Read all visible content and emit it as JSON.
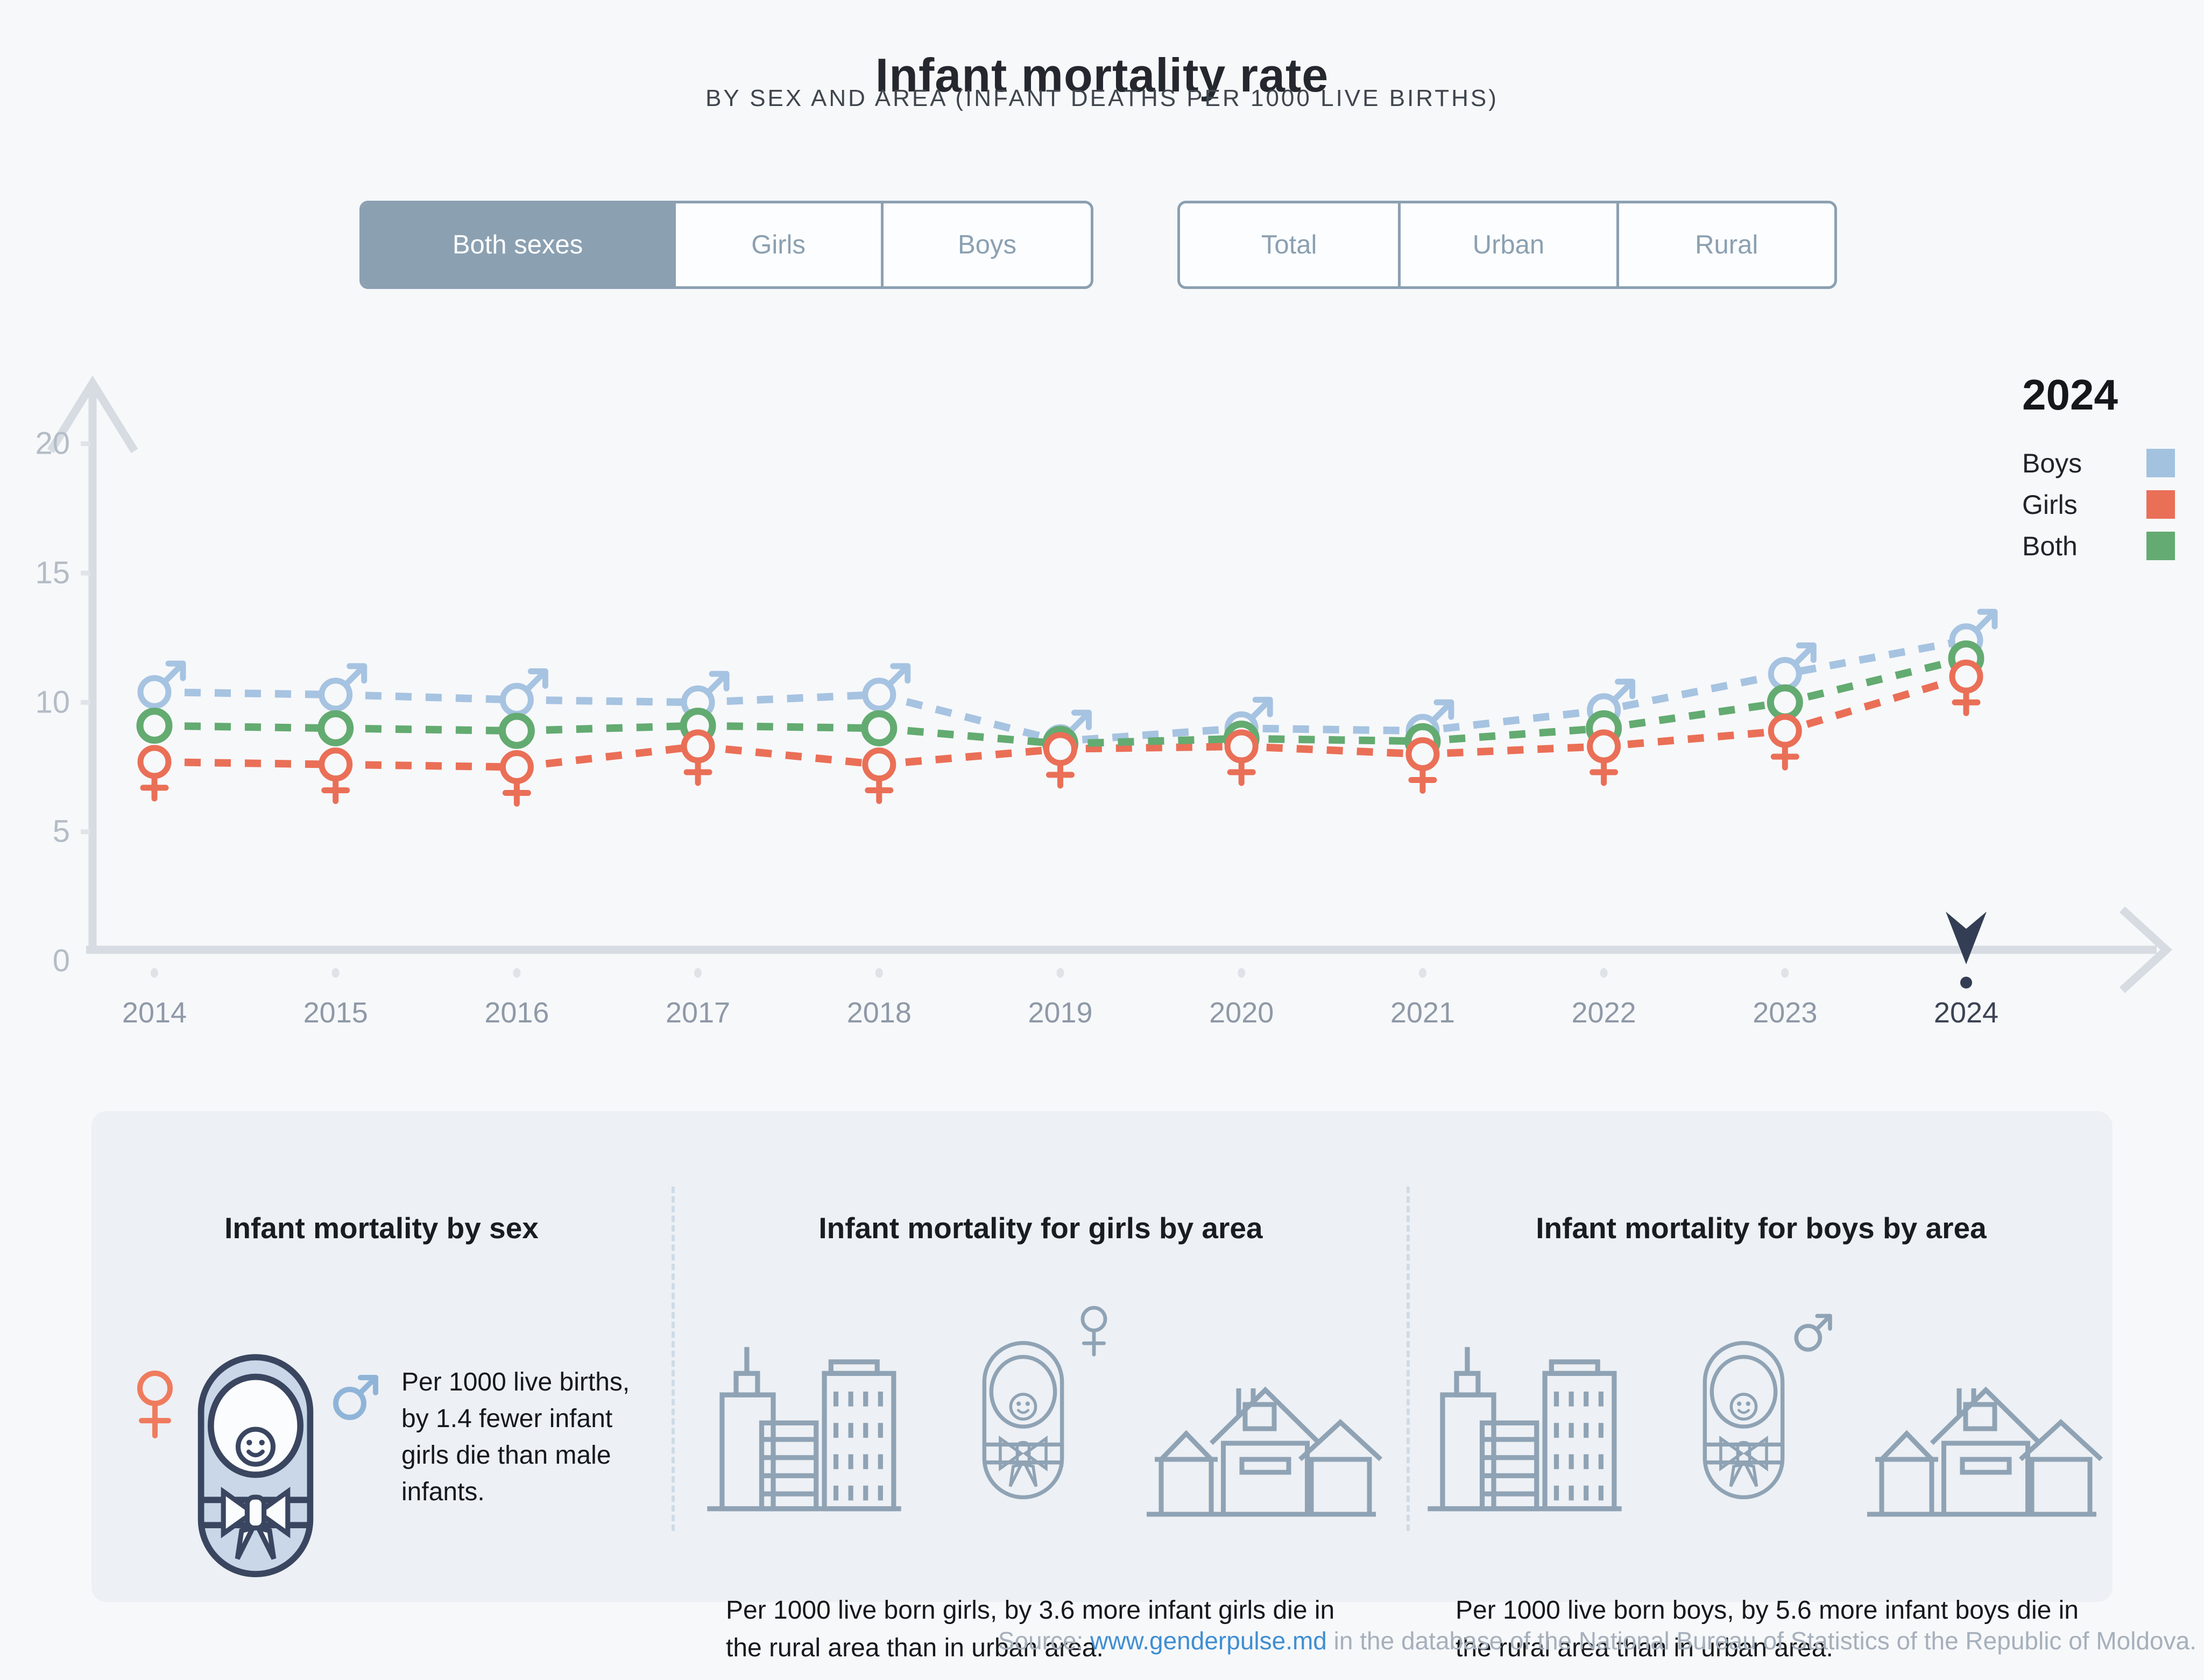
{
  "header": {
    "title": "Infant mortality rate",
    "subtitle": "BY SEX AND AREA (INFANT DEATHS PER 1000 LIVE BIRTHS)"
  },
  "filters": {
    "sex": {
      "options": [
        "Both sexes",
        "Girls",
        "Boys"
      ],
      "selected": "Both sexes"
    },
    "area": {
      "options": [
        "Total",
        "Urban",
        "Rural"
      ],
      "selected": ""
    }
  },
  "legend": {
    "year": "2024",
    "entries": [
      {
        "label": "Boys",
        "color": "#a3c2e0"
      },
      {
        "label": "Girls",
        "color": "#ea6f57"
      },
      {
        "label": "Both",
        "color": "#63ab71"
      }
    ]
  },
  "chart_data": {
    "type": "line",
    "x": [
      2014,
      2015,
      2016,
      2017,
      2018,
      2019,
      2020,
      2021,
      2022,
      2023,
      2024
    ],
    "series": [
      {
        "id": "boys",
        "name": "Boys",
        "marker": "male",
        "color": "#a6c3e1",
        "values": [
          10.4,
          10.3,
          10.1,
          10.0,
          10.3,
          8.5,
          9.0,
          8.9,
          9.7,
          11.1,
          12.4
        ]
      },
      {
        "id": "girls",
        "name": "Girls",
        "marker": "female",
        "color": "#ea6f57",
        "values": [
          7.7,
          7.6,
          7.5,
          8.3,
          7.6,
          8.2,
          8.3,
          8.0,
          8.3,
          8.9,
          11.0
        ]
      },
      {
        "id": "both",
        "name": "Both",
        "marker": "circle",
        "color": "#63ab71",
        "values": [
          9.1,
          9.0,
          8.9,
          9.1,
          9.0,
          8.4,
          8.6,
          8.5,
          9.0,
          10.0,
          11.7
        ]
      }
    ],
    "title": "Infant mortality rate",
    "xlabel": "",
    "ylabel": "",
    "ylim": [
      0,
      22
    ],
    "yticks": [
      0,
      5,
      10,
      15,
      20
    ],
    "grid": false,
    "legend_position": "top-right",
    "highlighted_x": 2024,
    "line_style": "dashed"
  },
  "cards": [
    {
      "title": "Infant mortality by sex",
      "text": "Per 1000 live births, by 1.4 fewer infant girls die than male infants."
    },
    {
      "title": "Infant mortality for girls by area",
      "text": "Per 1000 live born girls, by 3.6 more infant girls die in the rural area than in urban area."
    },
    {
      "title": "Infant mortality for boys by area",
      "text": "Per 1000 live born boys, by 5.6 more infant boys die in the rural area than in urban area."
    }
  ],
  "source": {
    "prefix": "Source: ",
    "link_text": "www.genderpulse.md",
    "suffix": " in the database of the National Bureau of Statistics of the Republic of Moldova."
  },
  "colors": {
    "page_bg": "#f7f8fa",
    "axis": "#d6dce2",
    "tick_dash": "#e0e4e9",
    "tick_label": "#b4bcc6",
    "year_label": "#8f99a7",
    "year_label_active": "#3c4354",
    "year_dot": "#dfe3e8",
    "pin": "#333e55",
    "button_steel": "#8ba0b1",
    "card_bg": "#edf0f4",
    "icon_gray": "#8fa3b5",
    "baby_navy": "#3a4660",
    "baby_fill": "#c9d7e8",
    "female_orange": "#ef7b5e",
    "male_blue": "#8fb4d8"
  }
}
